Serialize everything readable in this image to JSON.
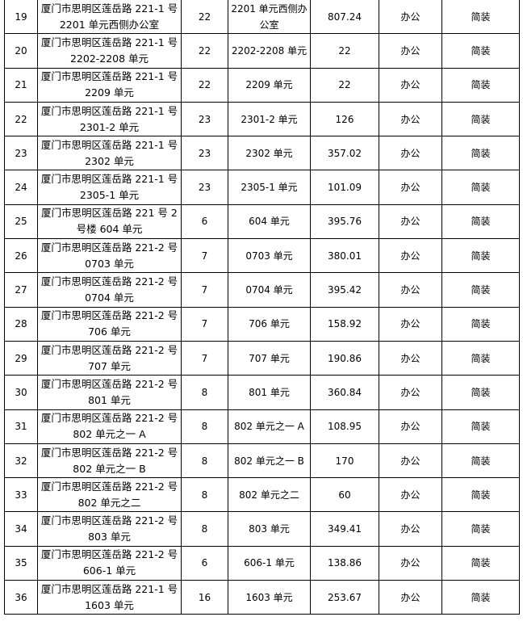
{
  "rows": [
    {
      "no": "19",
      "addr1": "厦门市思明区莲岳路 221-1 号",
      "addr2": "2201 单元西侧办公室",
      "floor": "22",
      "unit1": "2201 单元西侧办",
      "unit2": "公室",
      "area": "807.24",
      "use": "办公",
      "decor": "简装"
    },
    {
      "no": "20",
      "addr1": "厦门市思明区莲岳路 221-1 号",
      "addr2": "2202-2208 单元",
      "floor": "22",
      "unit1": "2202-2208 单元",
      "unit2": "",
      "area": "22",
      "use": "办公",
      "decor": "简装"
    },
    {
      "no": "21",
      "addr1": "厦门市思明区莲岳路 221-1 号",
      "addr2": "2209 单元",
      "floor": "22",
      "unit1": "2209 单元",
      "unit2": "",
      "area": "22",
      "use": "办公",
      "decor": "简装"
    },
    {
      "no": "22",
      "addr1": "厦门市思明区莲岳路 221-1 号",
      "addr2": "2301-2 单元",
      "floor": "23",
      "unit1": "2301-2 单元",
      "unit2": "",
      "area": "126",
      "use": "办公",
      "decor": "简装"
    },
    {
      "no": "23",
      "addr1": "厦门市思明区莲岳路 221-1 号",
      "addr2": "2302 单元",
      "floor": "23",
      "unit1": "2302 单元",
      "unit2": "",
      "area": "357.02",
      "use": "办公",
      "decor": "简装"
    },
    {
      "no": "24",
      "addr1": "厦门市思明区莲岳路 221-1 号",
      "addr2": "2305-1 单元",
      "floor": "23",
      "unit1": "2305-1 单元",
      "unit2": "",
      "area": "101.09",
      "use": "办公",
      "decor": "简装"
    },
    {
      "no": "25",
      "addr1": "厦门市思明区莲岳路 221 号 2",
      "addr2": "号楼 604 单元",
      "floor": "6",
      "unit1": "604 单元",
      "unit2": "",
      "area": "395.76",
      "use": "办公",
      "decor": "简装"
    },
    {
      "no": "26",
      "addr1": "厦门市思明区莲岳路 221-2 号",
      "addr2": "0703 单元",
      "floor": "7",
      "unit1": "0703 单元",
      "unit2": "",
      "area": "380.01",
      "use": "办公",
      "decor": "简装"
    },
    {
      "no": "27",
      "addr1": "厦门市思明区莲岳路 221-2 号",
      "addr2": "0704 单元",
      "floor": "7",
      "unit1": "0704 单元",
      "unit2": "",
      "area": "395.42",
      "use": "办公",
      "decor": "简装"
    },
    {
      "no": "28",
      "addr1": "厦门市思明区莲岳路 221-2 号",
      "addr2": "706 单元",
      "floor": "7",
      "unit1": "706 单元",
      "unit2": "",
      "area": "158.92",
      "use": "办公",
      "decor": "简装"
    },
    {
      "no": "29",
      "addr1": "厦门市思明区莲岳路 221-2 号",
      "addr2": "707 单元",
      "floor": "7",
      "unit1": "707 单元",
      "unit2": "",
      "area": "190.86",
      "use": "办公",
      "decor": "简装"
    },
    {
      "no": "30",
      "addr1": "厦门市思明区莲岳路 221-2 号",
      "addr2": "801 单元",
      "floor": "8",
      "unit1": "801 单元",
      "unit2": "",
      "area": "360.84",
      "use": "办公",
      "decor": "简装"
    },
    {
      "no": "31",
      "addr1": "厦门市思明区莲岳路 221-2 号",
      "addr2": "802 单元之一 A",
      "floor": "8",
      "unit1": "802 单元之一 A",
      "unit2": "",
      "area": "108.95",
      "use": "办公",
      "decor": "简装"
    },
    {
      "no": "32",
      "addr1": "厦门市思明区莲岳路 221-2 号",
      "addr2": "802 单元之一 B",
      "floor": "8",
      "unit1": "802 单元之一 B",
      "unit2": "",
      "area": "170",
      "use": "办公",
      "decor": "简装"
    },
    {
      "no": "33",
      "addr1": "厦门市思明区莲岳路 221-2 号",
      "addr2": "802 单元之二",
      "floor": "8",
      "unit1": "802 单元之二",
      "unit2": "",
      "area": "60",
      "use": "办公",
      "decor": "简装"
    },
    {
      "no": "34",
      "addr1": "厦门市思明区莲岳路 221-2 号",
      "addr2": "803 单元",
      "floor": "8",
      "unit1": "803 单元",
      "unit2": "",
      "area": "349.41",
      "use": "办公",
      "decor": "简装"
    },
    {
      "no": "35",
      "addr1": "厦门市思明区莲岳路 221-2 号",
      "addr2": "606-1 单元",
      "floor": "6",
      "unit1": "606-1 单元",
      "unit2": "",
      "area": "138.86",
      "use": "办公",
      "decor": "简装"
    },
    {
      "no": "36",
      "addr1": "厦门市思明区莲岳路 221-1 号",
      "addr2": "1603 单元",
      "floor": "16",
      "unit1": "1603 单元",
      "unit2": "",
      "area": "253.67",
      "use": "办公",
      "decor": "简装"
    }
  ]
}
